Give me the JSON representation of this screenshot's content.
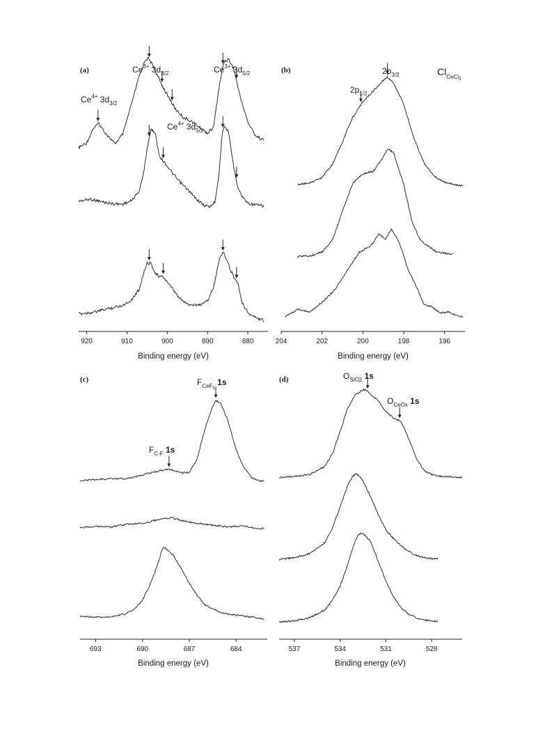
{
  "chart_data": [
    {
      "type": "line",
      "panel_label": "(a)",
      "xlabel": "Binding energy (eV)",
      "xlim": [
        922,
        875
      ],
      "x_reversed": true,
      "xticks": [
        920,
        910,
        900,
        890,
        880
      ],
      "traces": [
        {
          "x": [
            922,
            920,
            918.5,
            917,
            915.5,
            913,
            911,
            909,
            907,
            905.5,
            904.8,
            903.5,
            902,
            900,
            898,
            896,
            894,
            892,
            890,
            888.5,
            887.3,
            886,
            884.8,
            883.5,
            882,
            880,
            878,
            876
          ],
          "y": [
            0.02,
            0.07,
            0.21,
            0.27,
            0.18,
            0.06,
            0.16,
            0.45,
            0.75,
            0.92,
            0.94,
            0.86,
            0.72,
            0.56,
            0.42,
            0.33,
            0.29,
            0.23,
            0.17,
            0.23,
            0.6,
            0.9,
            0.93,
            0.83,
            0.56,
            0.28,
            0.14,
            0.1
          ]
        },
        {
          "x": [
            922,
            919,
            916,
            913,
            911,
            909,
            907,
            906,
            905,
            904,
            903,
            902,
            901,
            900,
            899,
            897,
            895,
            893,
            891,
            889.5,
            888.2,
            887.2,
            886.3,
            885.6,
            884.8,
            883.5,
            882.5,
            881.5,
            880,
            878,
            876
          ],
          "y": [
            0.08,
            0.1,
            0.07,
            0.05,
            0.05,
            0.08,
            0.18,
            0.34,
            0.62,
            0.82,
            0.78,
            0.55,
            0.49,
            0.44,
            0.38,
            0.28,
            0.2,
            0.11,
            0.04,
            0.02,
            0.07,
            0.35,
            0.8,
            0.85,
            0.78,
            0.43,
            0.23,
            0.13,
            0.06,
            0.04,
            0.03
          ]
        },
        {
          "x": [
            922,
            918,
            914,
            911,
            909,
            907,
            906,
            905,
            904,
            903,
            902,
            901,
            900,
            899,
            897,
            895,
            892,
            890,
            888.5,
            887.5,
            887,
            886.5,
            886,
            885.5,
            884.5,
            883.5,
            882.5,
            881.5,
            880,
            878,
            876
          ],
          "y": [
            0.08,
            0.1,
            0.14,
            0.17,
            0.22,
            0.33,
            0.48,
            0.6,
            0.6,
            0.5,
            0.46,
            0.46,
            0.41,
            0.35,
            0.24,
            0.18,
            0.17,
            0.22,
            0.35,
            0.55,
            0.66,
            0.7,
            0.7,
            0.66,
            0.55,
            0.46,
            0.4,
            0.21,
            0.09,
            0.04,
            0.01
          ]
        }
      ],
      "arrows": [
        {
          "trace": 0,
          "x": 917.2
        },
        {
          "trace": 0,
          "x": 904.5
        },
        {
          "trace": 0,
          "x": 901.3
        },
        {
          "trace": 0,
          "x": 898.8
        },
        {
          "trace": 0,
          "x": 886.2
        },
        {
          "trace": 0,
          "x": 882.8
        },
        {
          "trace": 1,
          "x": 904.5
        },
        {
          "trace": 1,
          "x": 901.0
        },
        {
          "trace": 1,
          "x": 886.2
        },
        {
          "trace": 1,
          "x": 882.8
        },
        {
          "trace": 2,
          "x": 904.5
        },
        {
          "trace": 2,
          "x": 901.0
        },
        {
          "trace": 2,
          "x": 886.2
        },
        {
          "trace": 2,
          "x": 882.8
        }
      ]
    },
    {
      "type": "line",
      "panel_label": "(b)",
      "xlabel": "Binding energy (eV)",
      "xlim": [
        204,
        195
      ],
      "x_reversed": true,
      "xticks": [
        204,
        202,
        200,
        198,
        196
      ],
      "traces": [
        {
          "x": [
            203.2,
            202.5,
            202,
            201.5,
            201,
            200.5,
            200,
            199.5,
            199,
            198.8,
            198.5,
            198,
            197.5,
            197,
            196.5,
            196,
            195.5,
            195.1
          ],
          "y": [
            0.04,
            0.06,
            0.1,
            0.21,
            0.4,
            0.61,
            0.74,
            0.83,
            0.92,
            0.95,
            0.9,
            0.72,
            0.43,
            0.22,
            0.11,
            0.06,
            0.04,
            0.03
          ]
        },
        {
          "x": [
            203.2,
            202.5,
            202,
            201.5,
            201,
            200.5,
            200,
            199.5,
            199,
            198.8,
            198.5,
            198,
            197.6,
            197.2,
            196.8,
            196.4,
            196,
            195.6
          ],
          "y": [
            0.02,
            0.03,
            0.06,
            0.16,
            0.4,
            0.64,
            0.72,
            0.74,
            0.86,
            0.93,
            0.9,
            0.63,
            0.32,
            0.16,
            0.11,
            0.06,
            0.05,
            0.04
          ]
        },
        {
          "x": [
            203.8,
            203.2,
            202.6,
            202.0,
            201.4,
            200.8,
            200.2,
            199.6,
            199.2,
            198.9,
            198.6,
            198.2,
            197.8,
            197.4,
            197.0,
            196.6,
            196.2,
            195.8,
            195.4,
            195.1
          ],
          "y": [
            0.02,
            0.08,
            0.06,
            0.14,
            0.24,
            0.4,
            0.56,
            0.62,
            0.72,
            0.67,
            0.76,
            0.64,
            0.42,
            0.28,
            0.12,
            0.1,
            0.05,
            0.06,
            0.03,
            0.02
          ]
        }
      ],
      "arrows": [
        {
          "trace": 0,
          "x": 200.1
        },
        {
          "trace": 0,
          "x": 198.8
        }
      ]
    },
    {
      "type": "line",
      "panel_label": "(c)",
      "xlabel": "Binding energy (eV)",
      "xlim": [
        694,
        682
      ],
      "x_reversed": true,
      "xticks": [
        693,
        690,
        687,
        684
      ],
      "traces": [
        {
          "x": [
            694,
            693,
            692,
            691,
            690,
            689,
            688.5,
            688,
            687.5,
            687,
            686.5,
            686,
            685.5,
            685.3,
            685,
            684.5,
            684,
            683.5,
            683,
            682.5,
            682.2
          ],
          "y": [
            0.05,
            0.06,
            0.07,
            0.07,
            0.11,
            0.15,
            0.17,
            0.16,
            0.13,
            0.14,
            0.28,
            0.6,
            0.84,
            0.9,
            0.88,
            0.68,
            0.38,
            0.19,
            0.08,
            0.05,
            0.04
          ]
        },
        {
          "x": [
            694,
            693,
            692,
            691,
            690,
            689,
            688.2,
            687.5,
            686.5,
            685.5,
            684.5,
            683.5,
            682.5,
            682.2
          ],
          "y": [
            0.05,
            0.07,
            0.06,
            0.09,
            0.1,
            0.14,
            0.16,
            0.13,
            0.1,
            0.08,
            0.06,
            0.07,
            0.04,
            0.05
          ]
        },
        {
          "x": [
            694,
            693,
            692,
            691,
            690.5,
            690,
            689.5,
            689,
            688.7,
            688.4,
            688,
            687.5,
            687,
            686.5,
            686,
            685.5,
            685,
            684.5,
            684,
            683,
            682.2
          ],
          "y": [
            0.06,
            0.05,
            0.05,
            0.09,
            0.14,
            0.23,
            0.4,
            0.62,
            0.79,
            0.77,
            0.7,
            0.56,
            0.41,
            0.28,
            0.18,
            0.14,
            0.1,
            0.08,
            0.07,
            0.05,
            0.03
          ]
        }
      ],
      "arrows": [
        {
          "trace": 0,
          "x": 688.3
        },
        {
          "trace": 0,
          "x": 685.3
        }
      ]
    },
    {
      "type": "line",
      "panel_label": "(d)",
      "xlabel": "Binding energy (eV)",
      "xlim": [
        538,
        526
      ],
      "x_reversed": true,
      "xticks": [
        537,
        534,
        531,
        528
      ],
      "traces": [
        {
          "x": [
            538,
            537,
            536,
            535,
            534.5,
            534,
            533.5,
            533,
            532.5,
            532.3,
            532,
            531.5,
            531,
            530.5,
            530,
            529.5,
            529,
            528.5,
            528,
            527.5,
            527,
            526.5,
            526
          ],
          "y": [
            0.03,
            0.04,
            0.06,
            0.14,
            0.27,
            0.49,
            0.73,
            0.86,
            0.91,
            0.91,
            0.86,
            0.8,
            0.69,
            0.63,
            0.59,
            0.42,
            0.22,
            0.1,
            0.06,
            0.04,
            0.04,
            0.03,
            0.03
          ]
        },
        {
          "x": [
            538,
            537,
            536,
            535,
            534.5,
            534,
            533.5,
            533.2,
            533,
            532.8,
            532.5,
            532,
            531.5,
            531,
            530.5,
            530,
            529.5,
            529,
            528.5,
            528,
            527.6
          ],
          "y": [
            0.03,
            0.05,
            0.09,
            0.2,
            0.35,
            0.56,
            0.78,
            0.86,
            0.89,
            0.88,
            0.82,
            0.66,
            0.48,
            0.33,
            0.24,
            0.17,
            0.11,
            0.07,
            0.05,
            0.04,
            0.04
          ]
        },
        {
          "x": [
            538,
            537,
            536,
            535,
            534.5,
            534,
            533.5,
            533,
            532.8,
            532.6,
            532.3,
            532,
            531.5,
            531,
            530.5,
            530,
            529.5,
            529,
            528.5,
            528,
            527.6
          ],
          "y": [
            0.02,
            0.03,
            0.06,
            0.14,
            0.24,
            0.38,
            0.6,
            0.84,
            0.9,
            0.91,
            0.88,
            0.82,
            0.63,
            0.43,
            0.27,
            0.16,
            0.1,
            0.06,
            0.04,
            0.03,
            0.02
          ]
        }
      ],
      "arrows": [
        {
          "trace": 0,
          "x": 532.2
        },
        {
          "trace": 0,
          "x": 530.1
        }
      ]
    }
  ],
  "annotations": {
    "a_ce4_32": {
      "main": "Ce",
      "sup": "4+",
      "mid": " 3d",
      "sub": "3/2"
    },
    "a_ce3_32": {
      "main": "Ce",
      "sup": "3+",
      "mid": " 3d",
      "sub": "3/2"
    },
    "a_ce3_52": {
      "main": "Ce",
      "sup": "3+",
      "mid": " 3d",
      "sub": "5/2"
    },
    "a_ce4_52": {
      "main": "Ce",
      "sup": "4+",
      "mid": " 3d",
      "sub": "5/2"
    },
    "b_2p32": {
      "main": "2p",
      "sub": "3/2"
    },
    "b_2p12": {
      "main": "2p",
      "sub": "1/2"
    },
    "b_cl": {
      "main": "Cl",
      "sub": "CeCl",
      "subsub": "3"
    },
    "c_fcef3": {
      "main": "F",
      "sub": "CeF",
      "subsub": "3",
      "tail": " 1s"
    },
    "c_fcf": {
      "main": "F",
      "sub": "C-F",
      "tail": " 1s"
    },
    "d_osio2": {
      "main": "O",
      "sub": "SiO2",
      "tail": " 1s"
    },
    "d_oceox": {
      "main": "O",
      "sub": "CeOx",
      "tail": " 1s"
    }
  }
}
